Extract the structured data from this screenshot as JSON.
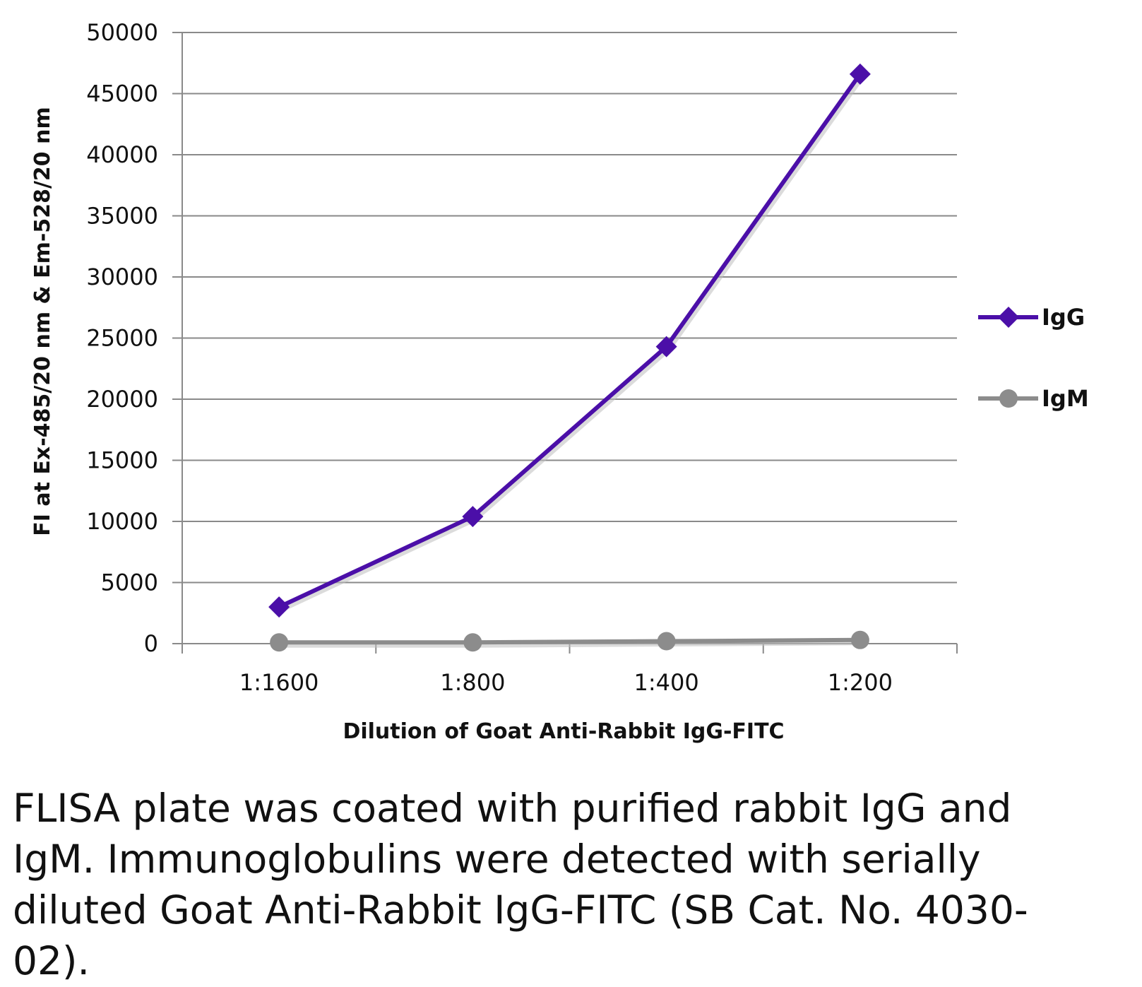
{
  "chart_data": {
    "type": "line",
    "title": "",
    "xlabel": "Dilution of Goat Anti-Rabbit IgG-FITC",
    "ylabel": "FI at Ex-485/20 nm & Em-528/20 nm",
    "categories": [
      "1:1600",
      "1:800",
      "1:400",
      "1:200"
    ],
    "ylim": [
      0,
      50000
    ],
    "yticks": [
      0,
      5000,
      10000,
      15000,
      20000,
      25000,
      30000,
      35000,
      40000,
      45000,
      50000
    ],
    "grid": true,
    "legend_position": "right",
    "series": [
      {
        "name": "IgG",
        "marker": "diamond",
        "color": "#4B0FA8",
        "values": [
          3000,
          10400,
          24300,
          46600
        ]
      },
      {
        "name": "IgM",
        "marker": "circle",
        "color": "#8C8C8C",
        "values": [
          100,
          100,
          200,
          300
        ]
      }
    ]
  },
  "caption": "FLISA plate was coated with purified rabbit IgG and IgM.  Immunoglobulins were detected with serially diluted Goat Anti-Rabbit IgG-FITC (SB Cat. No. 4030-02)."
}
